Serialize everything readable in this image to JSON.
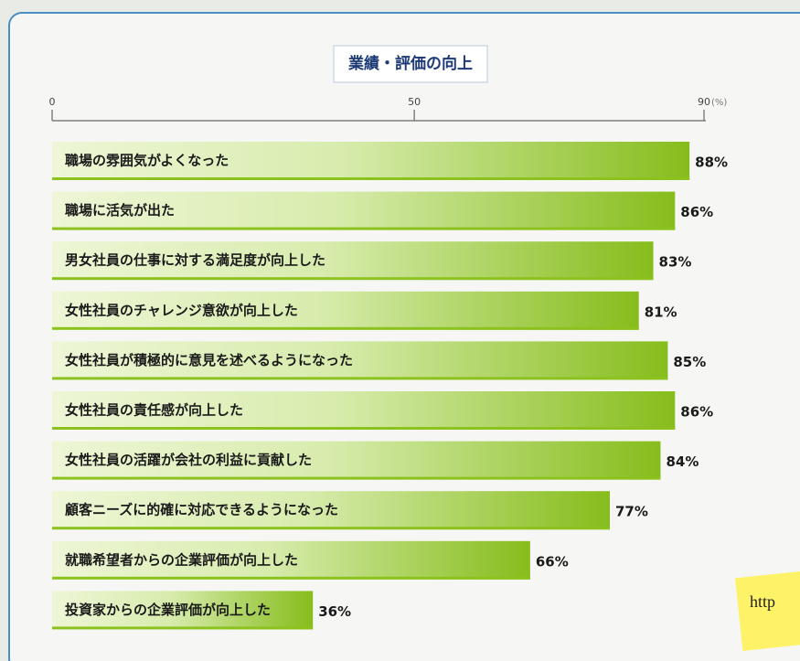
{
  "chart_data": {
    "type": "barh",
    "title": "業績・評価の向上",
    "categories": [
      "職場の雰囲気がよくなった",
      "職場に活気が出た",
      "男女社員の仕事に対する満足度が向上した",
      "女性社員のチャレンジ意欲が向上した",
      "女性社員が積極的に意見を述べるようになった",
      "女性社員の責任感が向上した",
      "女性社員の活躍が会社の利益に貢献した",
      "顧客ニーズに的確に対応できるようになった",
      "就職希望者からの企業評価が向上した",
      "投資家からの企業評価が向上した"
    ],
    "values": [
      88,
      86,
      83,
      81,
      85,
      86,
      84,
      77,
      66,
      36
    ],
    "value_labels": [
      "88%",
      "86%",
      "83%",
      "81%",
      "85%",
      "86%",
      "84%",
      "77%",
      "66%",
      "36%"
    ],
    "color": "#8cc21e",
    "xlabel": "(%)",
    "xlim": [
      0,
      90
    ],
    "xticks": [
      0,
      50,
      90
    ],
    "note": "http"
  }
}
